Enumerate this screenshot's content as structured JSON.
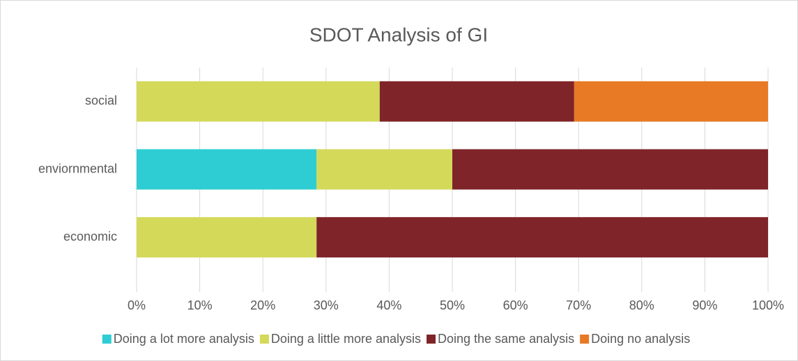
{
  "chart_data": {
    "type": "stacked_bar_horizontal",
    "title": "SDOT Analysis of GI",
    "categories": [
      "economic",
      "enviornmental",
      "social"
    ],
    "series": [
      {
        "name": "Doing a lot more analysis",
        "color": "#2ecdd3",
        "values": [
          0,
          28.5,
          0
        ]
      },
      {
        "name": "Doing a little more analysis",
        "color": "#d4d95a",
        "values": [
          28.5,
          21.5,
          38.5
        ]
      },
      {
        "name": "Doing the same analysis",
        "color": "#7f2428",
        "values": [
          71.5,
          50,
          30.8
        ]
      },
      {
        "name": "Doing no analysis",
        "color": "#e87a25",
        "values": [
          0,
          0,
          30.7
        ]
      }
    ],
    "xlim": [
      0,
      100
    ],
    "xticks": [
      {
        "value": 0,
        "label": "0%"
      },
      {
        "value": 10,
        "label": "10%"
      },
      {
        "value": 20,
        "label": "20%"
      },
      {
        "value": 30,
        "label": "30%"
      },
      {
        "value": 40,
        "label": "40%"
      },
      {
        "value": 50,
        "label": "50%"
      },
      {
        "value": 60,
        "label": "60%"
      },
      {
        "value": 70,
        "label": "70%"
      },
      {
        "value": 80,
        "label": "80%"
      },
      {
        "value": 90,
        "label": "90%"
      },
      {
        "value": 100,
        "label": "100%"
      }
    ],
    "grid": true,
    "legend": "bottom"
  }
}
